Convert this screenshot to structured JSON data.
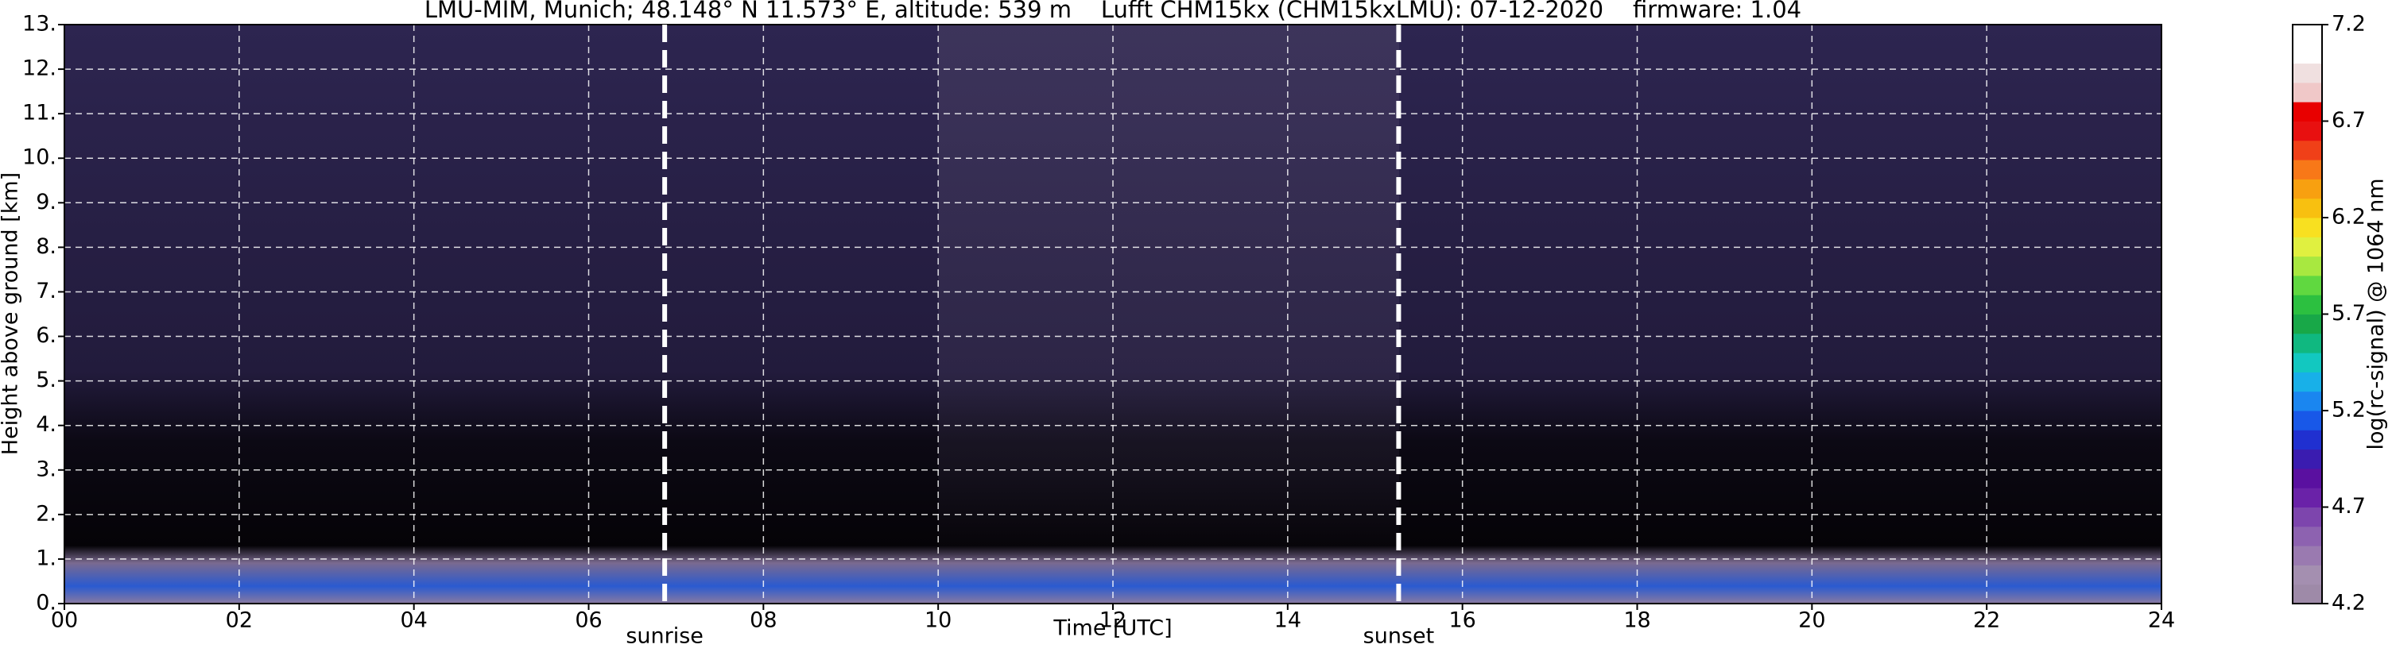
{
  "chart_data": {
    "type": "heatmap",
    "title": "LMU-MIM, Munich; 48.148° N 11.573° E, altitude: 539 m    Lufft CHM15kx (CHM15kxLMU): 07-12-2020    firmware: 1.04",
    "x_label": "Time [UTC]",
    "y_label": "Height above ground [km]",
    "xlim": [
      0,
      24
    ],
    "xticks": [
      {
        "value": 0,
        "label": "00"
      },
      {
        "value": 2,
        "label": "02"
      },
      {
        "value": 4,
        "label": "04"
      },
      {
        "value": 6,
        "label": "06"
      },
      {
        "value": 8,
        "label": "08"
      },
      {
        "value": 10,
        "label": "10"
      },
      {
        "value": 12,
        "label": "12"
      },
      {
        "value": 14,
        "label": "14"
      },
      {
        "value": 16,
        "label": "16"
      },
      {
        "value": 18,
        "label": "18"
      },
      {
        "value": 20,
        "label": "20"
      },
      {
        "value": 22,
        "label": "22"
      },
      {
        "value": 24,
        "label": "24"
      }
    ],
    "ylim": [
      0,
      13
    ],
    "yticks": [
      {
        "value": 0,
        "label": "0."
      },
      {
        "value": 1,
        "label": "1."
      },
      {
        "value": 2,
        "label": "2."
      },
      {
        "value": 3,
        "label": "3."
      },
      {
        "value": 4,
        "label": "4."
      },
      {
        "value": 5,
        "label": "5."
      },
      {
        "value": 6,
        "label": "6."
      },
      {
        "value": 7,
        "label": "7."
      },
      {
        "value": 8,
        "label": "8."
      },
      {
        "value": 9,
        "label": "9."
      },
      {
        "value": 10,
        "label": "10."
      },
      {
        "value": 11,
        "label": "11."
      },
      {
        "value": 12,
        "label": "12."
      },
      {
        "value": 13,
        "label": "13."
      }
    ],
    "grid": true,
    "annotations": [
      {
        "x": 6.87,
        "label": "sunrise"
      },
      {
        "x": 15.27,
        "label": "sunset"
      }
    ],
    "colorbar": {
      "label": "log(rc-signal) @ 1064 nm",
      "lim": [
        4.2,
        7.2
      ],
      "ticks": [
        4.2,
        4.7,
        5.2,
        5.7,
        6.2,
        6.7,
        7.2
      ],
      "colors": [
        "#9e8aa8",
        "#a48fb0",
        "#9a7ab0",
        "#8d62b0",
        "#7d45ad",
        "#6a22a8",
        "#5a10a0",
        "#3a1cb0",
        "#2030d0",
        "#1858e8",
        "#1a86f0",
        "#18b0e8",
        "#12c8c0",
        "#10b880",
        "#18a848",
        "#2cc040",
        "#60d840",
        "#a8e840",
        "#e0f040",
        "#f8e020",
        "#f8c010",
        "#f8a010",
        "#f87818",
        "#f04018",
        "#e81010",
        "#e80000",
        "#f0c8c8",
        "#f0e0e0",
        "#ffffff",
        "#ffffff"
      ]
    }
  }
}
